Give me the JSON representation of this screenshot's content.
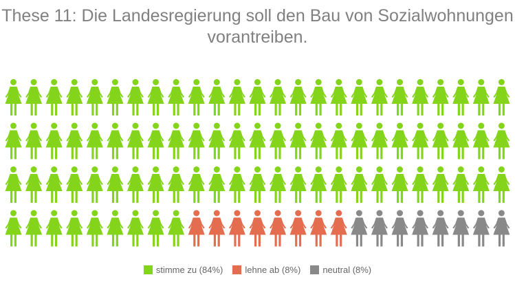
{
  "chart_data": {
    "type": "pictogram",
    "title": "These 11: Die Landesregierung soll den Bau von Sozialwohnungen vorantreiben.",
    "icon": "woman-icon",
    "rows": 4,
    "columns": 25,
    "series": [
      {
        "name": "stimme zu (84%)",
        "value": 84,
        "color": "#84d41c"
      },
      {
        "name": "lehne ab (8%)",
        "value": 8,
        "color": "#e46d50"
      },
      {
        "name": "neutral (8%)",
        "value": 8,
        "color": "#898989"
      }
    ],
    "legend_position": "bottom"
  }
}
